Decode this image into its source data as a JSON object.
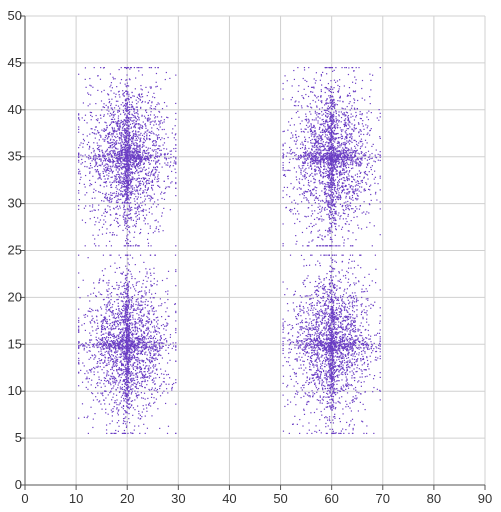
{
  "chart_data": {
    "type": "scatter",
    "title": "",
    "xlabel": "",
    "ylabel": "",
    "xlim": [
      0,
      90
    ],
    "ylim": [
      0,
      50
    ],
    "xticks": [
      0,
      10,
      20,
      30,
      40,
      50,
      60,
      70,
      80,
      90
    ],
    "yticks": [
      0,
      5,
      10,
      15,
      20,
      25,
      30,
      35,
      40,
      45,
      50
    ],
    "grid": true,
    "legend": "none",
    "point_color": "#6a3dc4",
    "clusters": [
      {
        "center": [
          20,
          35
        ],
        "x_range": [
          10.5,
          29.5
        ],
        "y_range": [
          25.5,
          44.5
        ],
        "count": 2500
      },
      {
        "center": [
          60,
          35
        ],
        "x_range": [
          50.5,
          69.5
        ],
        "y_range": [
          25.5,
          44.5
        ],
        "count": 2500
      },
      {
        "center": [
          20,
          15
        ],
        "x_range": [
          10.5,
          29.5
        ],
        "y_range": [
          5.5,
          24.5
        ],
        "count": 2500
      },
      {
        "center": [
          60,
          15
        ],
        "x_range": [
          50.5,
          69.5
        ],
        "y_range": [
          5.5,
          24.5
        ],
        "count": 2500
      }
    ]
  }
}
